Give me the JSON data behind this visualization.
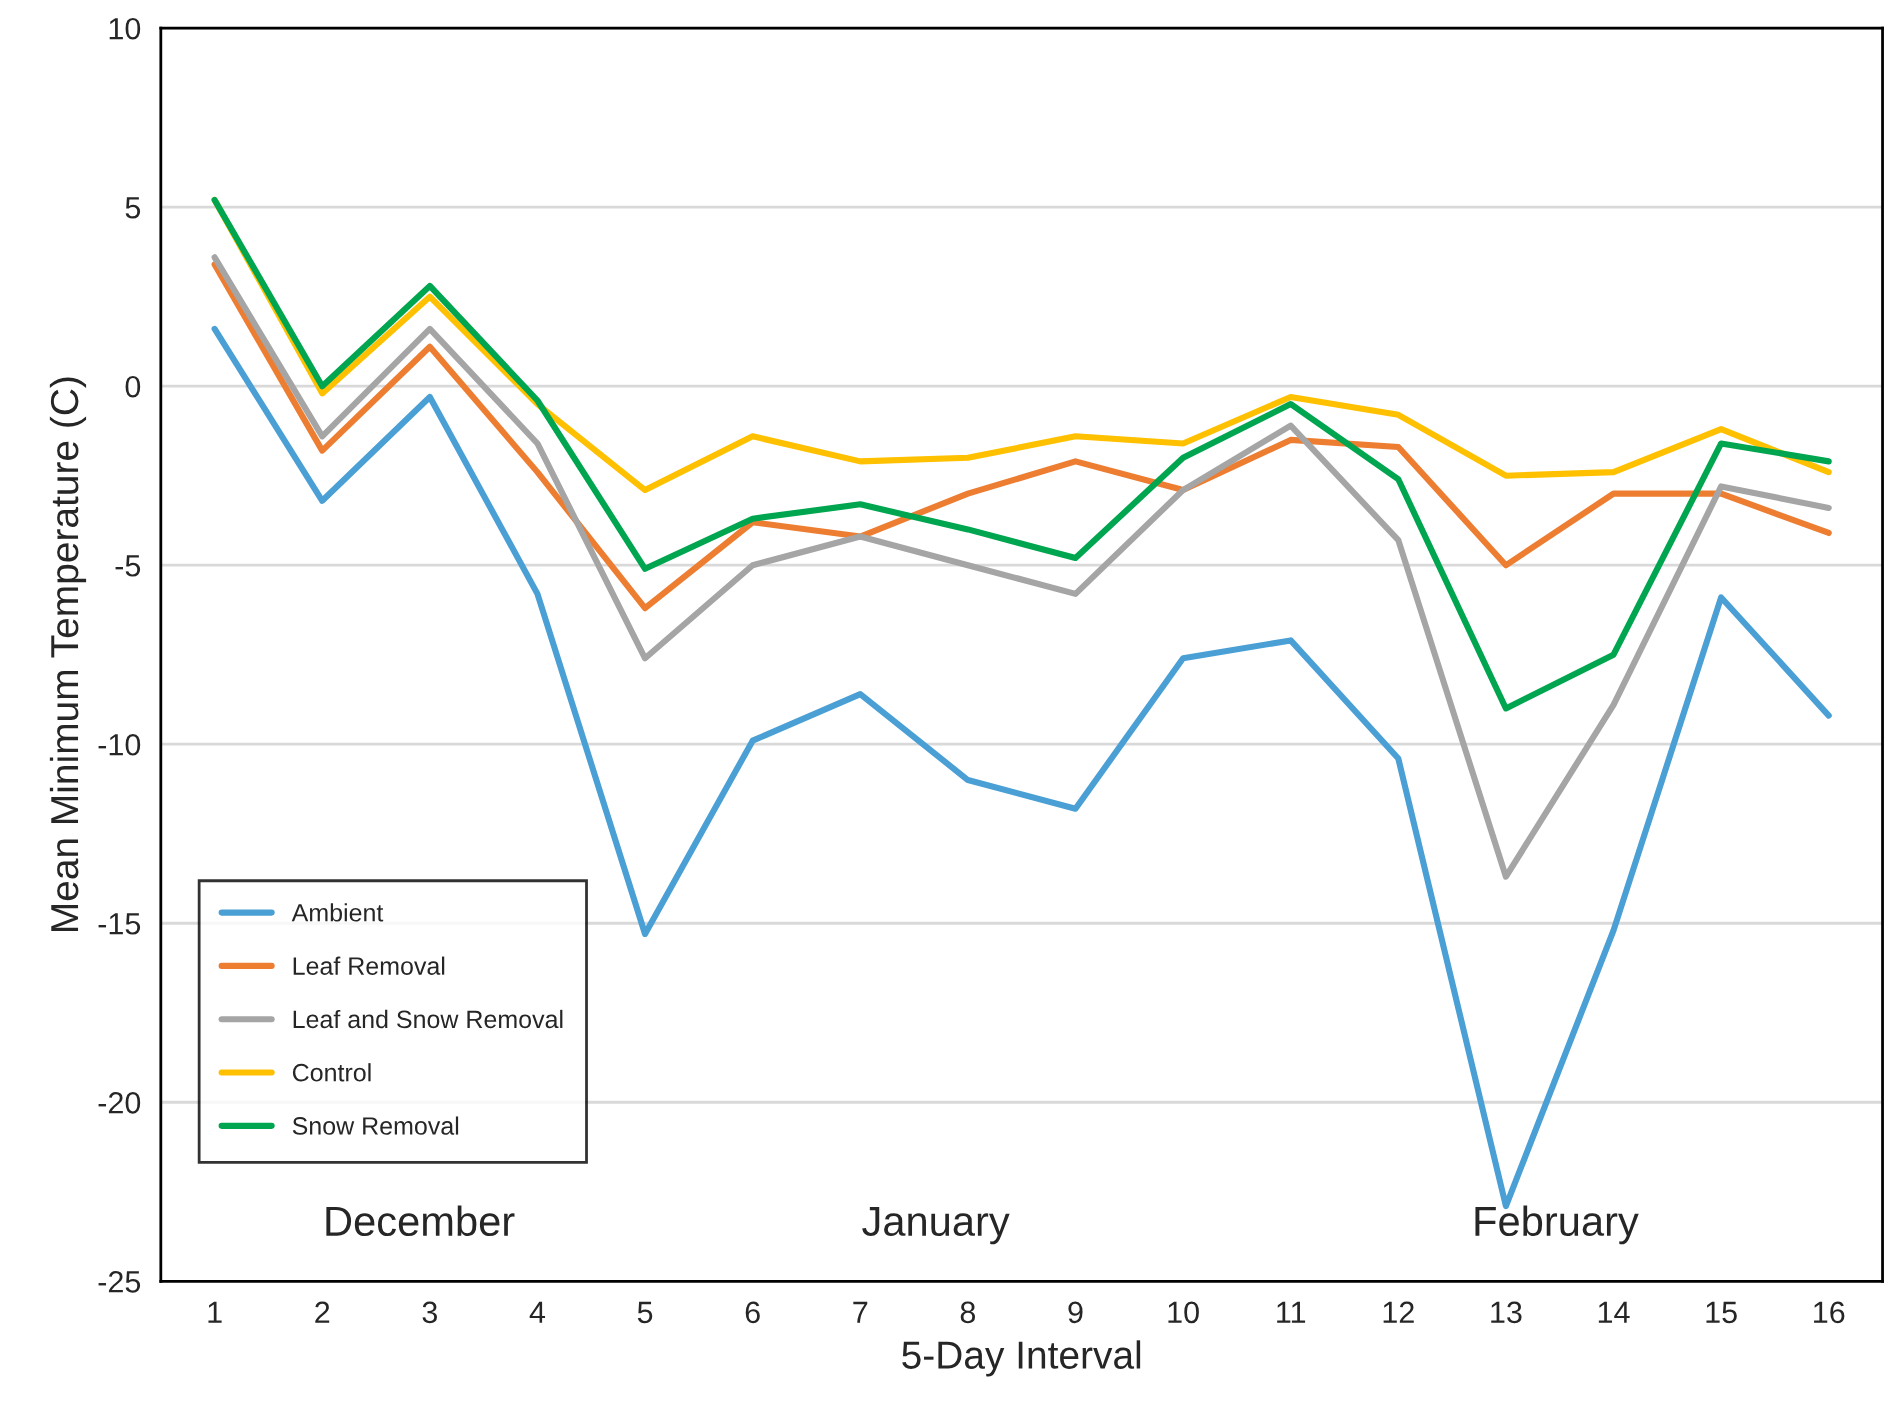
{
  "chart_data": {
    "type": "line",
    "xlabel": "5-Day Interval",
    "ylabel": "Mean Minimum Temperature (C)",
    "categories": [
      "1",
      "2",
      "3",
      "4",
      "5",
      "6",
      "7",
      "8",
      "9",
      "10",
      "11",
      "12",
      "13",
      "14",
      "15",
      "16"
    ],
    "series": [
      {
        "name": "Ambient",
        "color": "#4a9fd5",
        "values": [
          1.6,
          -3.2,
          -0.3,
          -5.8,
          -15.3,
          -9.9,
          -8.6,
          -11.0,
          -11.8,
          -7.6,
          -7.1,
          -10.4,
          -22.9,
          -15.2,
          -5.9,
          -9.2
        ]
      },
      {
        "name": "Leaf Removal",
        "color": "#ed7d31",
        "values": [
          3.4,
          -1.8,
          1.1,
          -2.4,
          -6.2,
          -3.8,
          -4.2,
          -3.0,
          -2.1,
          -2.9,
          -1.5,
          -1.7,
          -5.0,
          -3.0,
          -3.0,
          -4.1
        ]
      },
      {
        "name": "Leaf and Snow Removal",
        "color": "#a5a5a5",
        "values": [
          3.6,
          -1.4,
          1.6,
          -1.6,
          -7.6,
          -5.0,
          -4.2,
          -5.0,
          -5.8,
          -2.9,
          -1.1,
          -4.3,
          -13.7,
          -8.9,
          -2.8,
          -3.4
        ]
      },
      {
        "name": "Control",
        "color": "#ffc000",
        "values": [
          5.2,
          -0.2,
          2.5,
          -0.5,
          -2.9,
          -1.4,
          -2.1,
          -2.0,
          -1.4,
          -1.6,
          -0.3,
          -0.8,
          -2.5,
          -2.4,
          -1.2,
          -2.4
        ]
      },
      {
        "name": "Snow Removal",
        "color": "#00a550",
        "values": [
          5.2,
          0.0,
          2.8,
          -0.4,
          -5.1,
          -3.7,
          -3.3,
          -4.0,
          -4.8,
          -2.0,
          -0.5,
          -2.6,
          -9.0,
          -7.5,
          -1.6,
          -2.1
        ]
      }
    ],
    "annotations": [
      "December",
      "January",
      "February"
    ],
    "ylim": [
      -25,
      10
    ],
    "yticks": [
      -25,
      -20,
      -15,
      -10,
      -5,
      0,
      5,
      10
    ],
    "grid": "y",
    "legend": "bottom left",
    "marker": "none",
    "line_style": "solid"
  }
}
